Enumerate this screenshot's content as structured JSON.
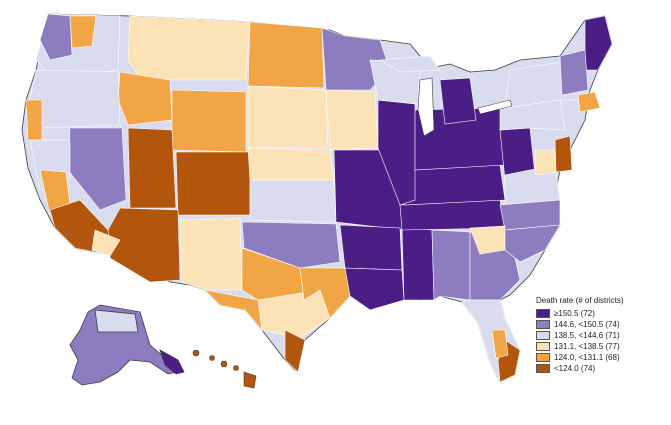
{
  "colors": {
    "c1": "#4b1e86",
    "c2": "#8e7cc0",
    "c3": "#d9dcef",
    "c4": "#fbe3b7",
    "c5": "#f2a545",
    "c6": "#b3560d",
    "outline": "#ffffff",
    "border": "#3c3c3c"
  },
  "legend": {
    "title": "Death rate (# of districts)",
    "items": [
      {
        "label": "≥150.5 (72)",
        "color": "#4b1e86"
      },
      {
        "label": "144.6, <150.5 (74)",
        "color": "#8e7cc0"
      },
      {
        "label": "138.5, <144.6 (71)",
        "color": "#d9dcef"
      },
      {
        "label": "131.1, <138.5 (77)",
        "color": "#fbe3b7"
      },
      {
        "label": "124.0, <131.1 (68)",
        "color": "#f2a545"
      },
      {
        "label": "<124.0 (74)",
        "color": "#b3560d"
      }
    ]
  }
}
